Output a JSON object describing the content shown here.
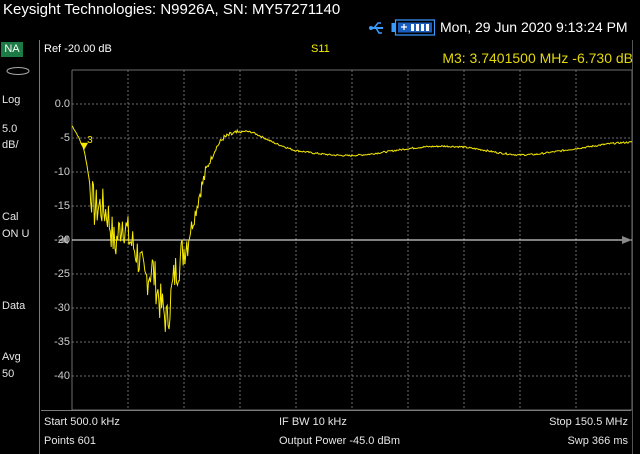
{
  "title_bar": {
    "title": "Keysight Technologies: N9926A, SN: MY57271140",
    "datetime": "Mon, 29 Jun 2020 9:13:24 PM",
    "usb_icon": "usb-icon",
    "battery_icon": "battery-icon"
  },
  "side_panel": {
    "mode": "NA",
    "scale_format": "Log",
    "scale_value": "5.0",
    "scale_unit": "dB/",
    "cal_label": "Cal",
    "cal_status": "ON U",
    "data_label": "Data",
    "avg_label": "Avg",
    "avg_value": "50"
  },
  "header": {
    "ref_level": "Ref -20.00 dB",
    "parameter": "S11",
    "marker_readout": "M3:  3.7401500 MHz  -6.730 dB"
  },
  "footer": {
    "start": "Start 500.0 kHz",
    "points": "Points 601",
    "if_bw": "IF BW 10 kHz",
    "output_power": "Output Power -45.0 dBm",
    "stop": "Stop 150.5 MHz",
    "sweep_time": "Swp 366 ms"
  },
  "colors": {
    "trace": "#f5ea00",
    "marker_text": "#e3d80a",
    "grid": "#6e6e6e",
    "ref_line": "#ffffff",
    "mode_badge": "#1c7a44"
  },
  "chart_data": {
    "type": "line",
    "x_unit": "MHz",
    "y_unit": "dB",
    "xlim": [
      0.5,
      150.5
    ],
    "ylim": [
      -45,
      5
    ],
    "yticks": [
      "0.0",
      "-5",
      "-10",
      "-15",
      "-20",
      "-25",
      "-30",
      "-35",
      "-40"
    ],
    "reference_level": -20,
    "grid": true,
    "series": [
      {
        "x": [
          0.5,
          1.2,
          2.0,
          3.0,
          3.74,
          4.5,
          5.5,
          6.5,
          8.0,
          10.0,
          12.0,
          14.0,
          16.0,
          18.0,
          20.0,
          22.0,
          24.0,
          26.0,
          28.0,
          30.0,
          32.0,
          33.5,
          35.0,
          37.0,
          39.0,
          41.0,
          43.0,
          45.0,
          47.0,
          49.0,
          52.0,
          55.0,
          60.0,
          65.0,
          70.0,
          75.0,
          80.0,
          85.0,
          90.0,
          95.0,
          100.0,
          105.0,
          110.0,
          115.0,
          120.0,
          125.0,
          130.0,
          135.0,
          140.0,
          145.0,
          150.5
        ],
        "y": [
          -3.2,
          -3.8,
          -4.6,
          -5.8,
          -6.73,
          -9.0,
          -12.5,
          -15.5,
          -15.0,
          -16.0,
          -21.0,
          -17.0,
          -20.0,
          -22.0,
          -26.0,
          -24.0,
          -29.0,
          -32.0,
          -25.0,
          -22.0,
          -19.0,
          -16.0,
          -12.5,
          -9.0,
          -6.5,
          -5.0,
          -4.5,
          -4.2,
          -4.0,
          -4.2,
          -5.0,
          -5.8,
          -6.8,
          -7.2,
          -7.5,
          -7.6,
          -7.4,
          -7.0,
          -6.6,
          -6.3,
          -6.2,
          -6.3,
          -6.7,
          -7.2,
          -7.5,
          -7.4,
          -7.0,
          -6.6,
          -6.2,
          -5.8,
          -5.6
        ]
      }
    ],
    "markers": [
      {
        "label": "3",
        "x": 3.74,
        "y": -6.73
      }
    ]
  }
}
